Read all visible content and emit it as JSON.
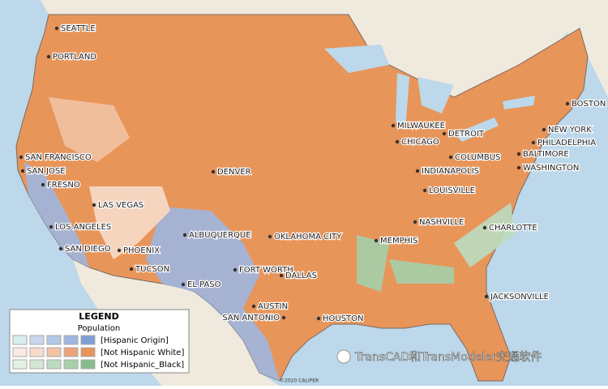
{
  "cities": [
    "SEATTLE",
    "PORTLAND",
    "SAN FRANCISCO",
    "SAN JOSE",
    "FRESNO",
    "LAS VEGAS",
    "LOS ANGELES",
    "SAN DIEGO",
    "PHOENIX",
    "TUCSON",
    "ALBUQUERQUE",
    "EL PASO",
    "DENVER",
    "FORT WORTH",
    "DALLAS",
    "AUSTIN",
    "SAN ANTONIO",
    "HOUSTON",
    "OKLAHOMA CITY",
    "MEMPHIS",
    "NASHVILLE",
    "CHARLOTTE",
    "JACKSONVILLE",
    "LOUISVILLE",
    "INDIANAPOLIS",
    "COLUMBUS",
    "CHICAGO",
    "MILWAUKEE",
    "DETROIT",
    "BALTIMORE",
    "WASHINGTON",
    "PHILADELPHIA",
    "NEW YORK",
    "BOSTON"
  ],
  "legend": {
    "title": "LEGEND",
    "subtitle": "Population",
    "rows": [
      {
        "label": "[Hispanic Origin]",
        "colors": [
          "#d7f0ee",
          "#c9d6ee",
          "#b3c6e6",
          "#9fb6e0",
          "#7f9fd4"
        ]
      },
      {
        "label": "[Not Hispanic White]",
        "colors": [
          "#fbe9e1",
          "#f8dccb",
          "#f3c3a4",
          "#eca37a",
          "#e8955a"
        ]
      },
      {
        "label": "[Not Hispanic_Black]",
        "colors": [
          "#e2f1e4",
          "#d2e8d4",
          "#bcdcbf",
          "#a6d0aa",
          "#86bd8b"
        ]
      }
    ]
  },
  "copyright": "©2020 CALIPER",
  "watermark": "TransCAD和TransModeler交通软件"
}
